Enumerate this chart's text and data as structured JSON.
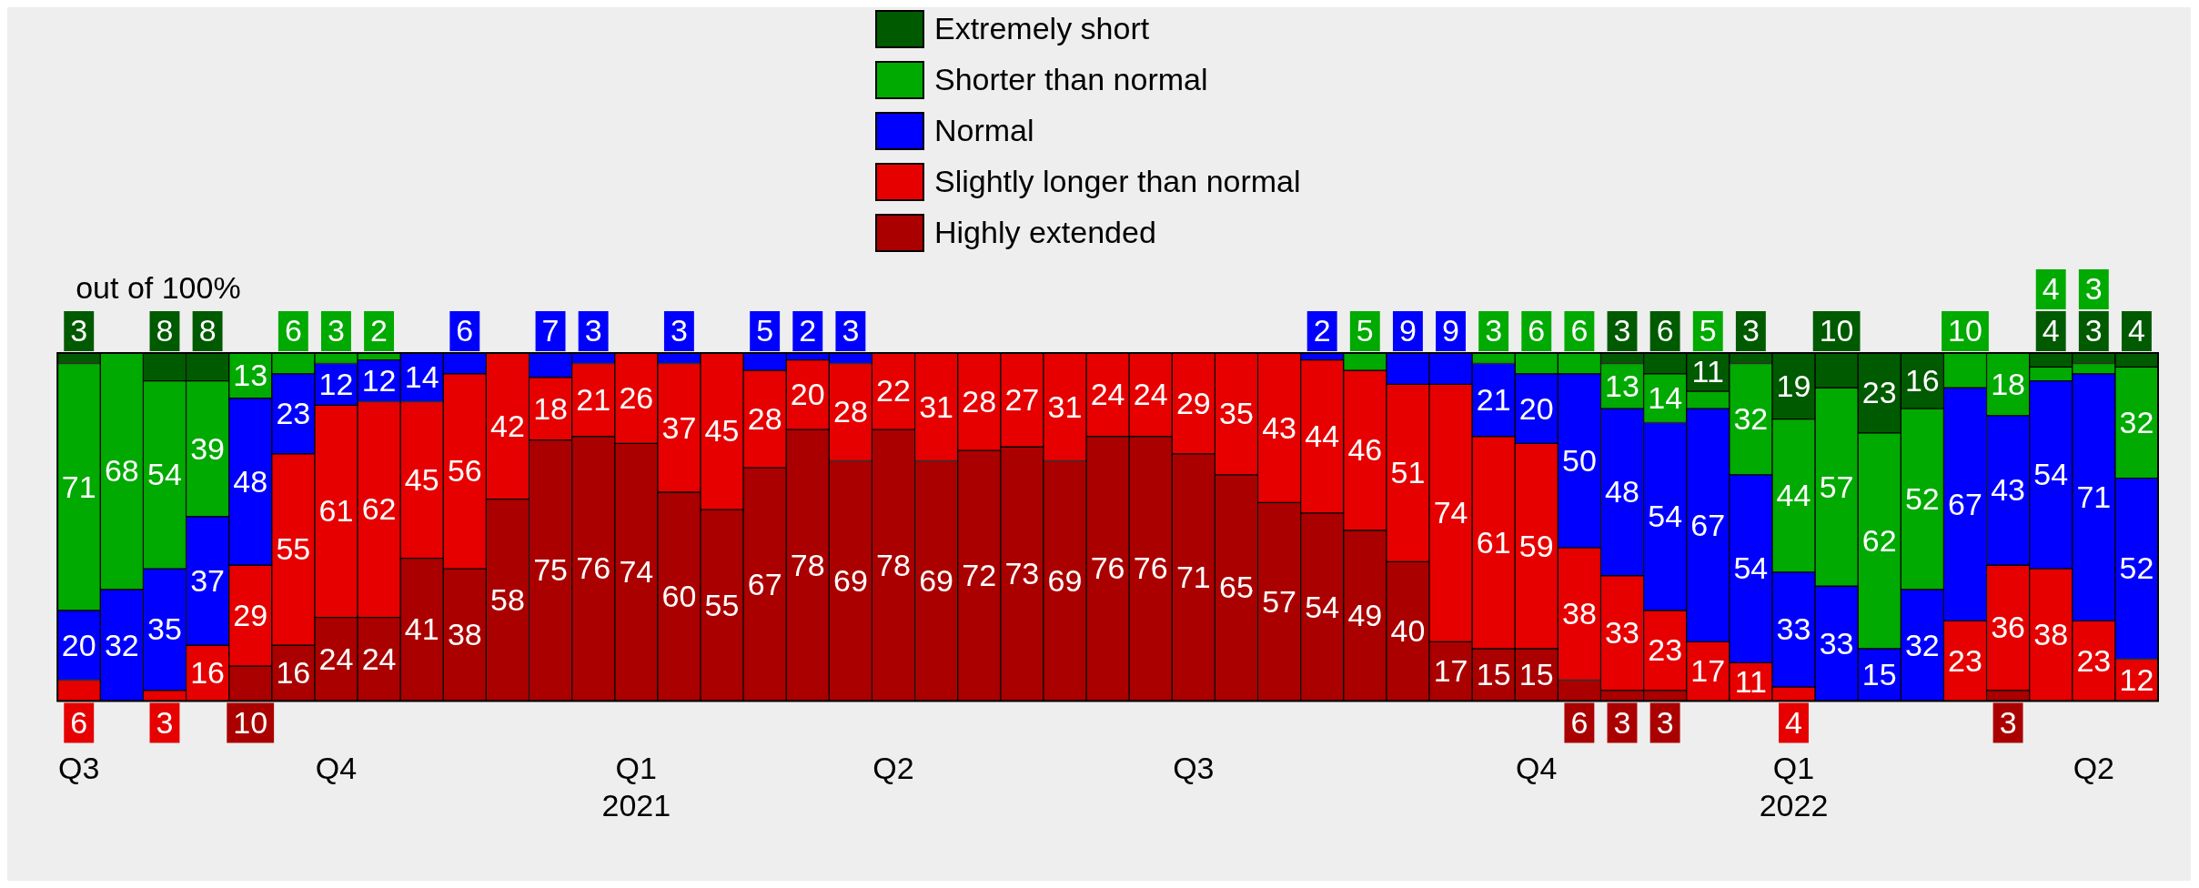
{
  "chart_data": {
    "type": "bar",
    "stacked": true,
    "data_labels": true,
    "legend": "top",
    "tick_labels": "x",
    "ylim": [
      0,
      100
    ],
    "annotations": [
      "out of 100%"
    ],
    "categories": [
      "Q3",
      null,
      null,
      null,
      null,
      null,
      "Q4",
      null,
      null,
      null,
      null,
      null,
      null,
      "Q1\n2021",
      null,
      null,
      null,
      null,
      null,
      "Q2",
      null,
      null,
      null,
      null,
      null,
      null,
      "Q3",
      null,
      null,
      null,
      null,
      null,
      null,
      null,
      "Q4",
      null,
      null,
      null,
      null,
      null,
      "Q1\n2022",
      null,
      null,
      null,
      null,
      null,
      null,
      "Q2",
      null
    ],
    "series": [
      {
        "name": "Highly extended",
        "color": "#aa0000",
        "values": [
          null,
          null,
          null,
          null,
          10,
          16,
          24,
          24,
          41,
          38,
          58,
          75,
          76,
          74,
          60,
          55,
          67,
          78,
          69,
          78,
          69,
          72,
          73,
          69,
          76,
          76,
          71,
          65,
          57,
          54,
          49,
          40,
          17,
          15,
          15,
          6,
          3,
          3,
          null,
          null,
          null,
          null,
          null,
          null,
          null,
          3,
          null,
          null,
          null
        ]
      },
      {
        "name": "Slightly longer than normal",
        "color": "#e60000",
        "values": [
          6,
          null,
          3,
          16,
          29,
          55,
          61,
          62,
          45,
          56,
          42,
          18,
          21,
          26,
          37,
          45,
          28,
          20,
          28,
          22,
          31,
          28,
          27,
          31,
          24,
          24,
          29,
          35,
          43,
          44,
          46,
          51,
          74,
          61,
          59,
          38,
          33,
          23,
          17,
          11,
          4,
          null,
          null,
          null,
          23,
          36,
          38,
          23,
          12
        ]
      },
      {
        "name": "Normal",
        "color": "#0000ff",
        "values": [
          20,
          32,
          35,
          37,
          48,
          23,
          12,
          12,
          14,
          6,
          null,
          7,
          3,
          null,
          3,
          null,
          5,
          2,
          3,
          null,
          null,
          null,
          null,
          null,
          null,
          null,
          null,
          null,
          null,
          2,
          null,
          9,
          9,
          21,
          20,
          50,
          48,
          54,
          67,
          54,
          33,
          33,
          15,
          32,
          67,
          43,
          54,
          71,
          52
        ]
      },
      {
        "name": "Shorter than normal",
        "color": "#00aa00",
        "values": [
          71,
          68,
          54,
          39,
          13,
          6,
          3,
          2,
          null,
          null,
          null,
          null,
          null,
          null,
          null,
          null,
          null,
          null,
          null,
          null,
          null,
          null,
          null,
          null,
          null,
          null,
          null,
          null,
          null,
          null,
          5,
          null,
          null,
          3,
          6,
          6,
          13,
          14,
          5,
          32,
          44,
          57,
          62,
          52,
          10,
          18,
          4,
          3,
          32
        ]
      },
      {
        "name": "Extremely short",
        "color": "#005a00",
        "values": [
          3,
          null,
          8,
          8,
          null,
          null,
          null,
          null,
          null,
          null,
          null,
          null,
          null,
          null,
          null,
          null,
          null,
          null,
          null,
          null,
          null,
          null,
          null,
          null,
          null,
          null,
          null,
          null,
          null,
          null,
          null,
          null,
          null,
          null,
          null,
          null,
          3,
          6,
          11,
          3,
          19,
          10,
          23,
          16,
          null,
          null,
          4,
          3,
          4
        ]
      }
    ]
  }
}
